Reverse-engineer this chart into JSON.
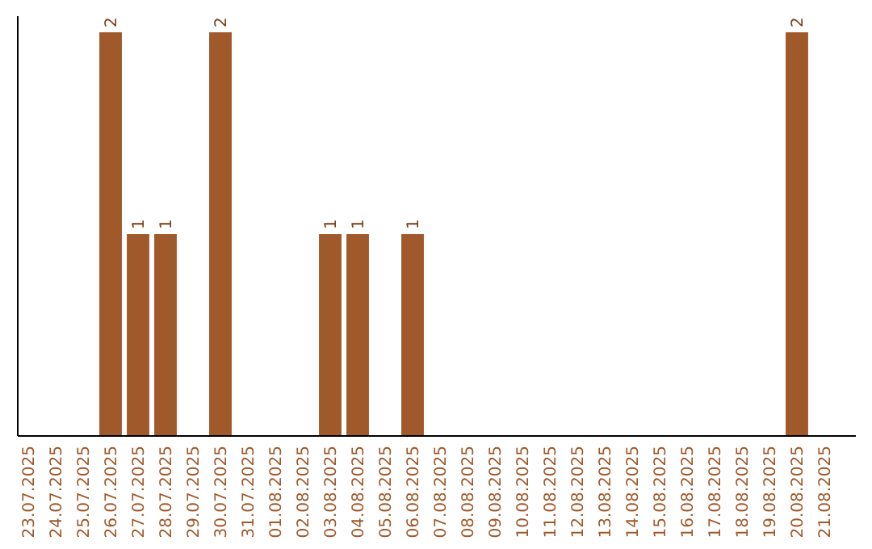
{
  "chart_data": {
    "type": "bar",
    "categories": [
      "23.07.2025",
      "24.07.2025",
      "25.07.2025",
      "26.07.2025",
      "27.07.2025",
      "28.07.2025",
      "29.07.2025",
      "30.07.2025",
      "31.07.2025",
      "01.08.2025",
      "02.08.2025",
      "03.08.2025",
      "04.08.2025",
      "05.08.2025",
      "06.08.2025",
      "07.08.2025",
      "08.08.2025",
      "09.08.2025",
      "10.08.2025",
      "11.08.2025",
      "12.08.2025",
      "13.08.2025",
      "14.08.2025",
      "15.08.2025",
      "16.08.2025",
      "17.08.2025",
      "18.08.2025",
      "19.08.2025",
      "20.08.2025",
      "21.08.2025"
    ],
    "values": [
      0,
      0,
      0,
      2,
      1,
      1,
      0,
      2,
      0,
      0,
      0,
      1,
      1,
      0,
      1,
      0,
      0,
      0,
      0,
      0,
      0,
      0,
      0,
      0,
      0,
      0,
      0,
      0,
      2,
      0
    ],
    "value_labels": [
      null,
      null,
      null,
      "2",
      "1",
      "1",
      null,
      "2",
      null,
      null,
      null,
      "1",
      "1",
      null,
      "1",
      null,
      null,
      null,
      null,
      null,
      null,
      null,
      null,
      null,
      null,
      null,
      null,
      null,
      "2",
      null
    ],
    "color": "#a0592b",
    "tick_labels": "x"
  }
}
